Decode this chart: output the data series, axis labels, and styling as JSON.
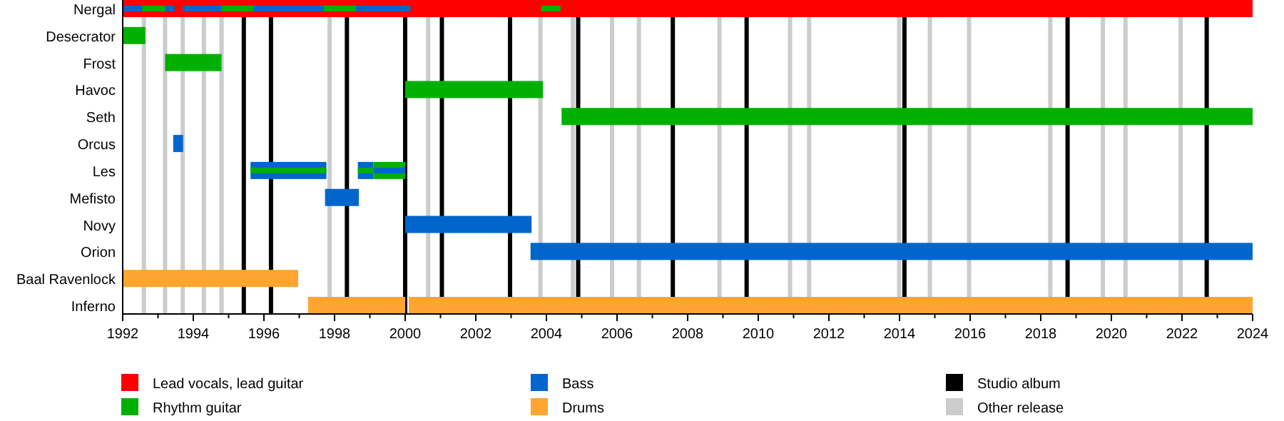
{
  "chart_data": {
    "type": "bar",
    "orientation": "horizontal",
    "legend": "bottom",
    "categories": [
      "Nergal",
      "Desecrator",
      "Frost",
      "Havoc",
      "Seth",
      "Orcus",
      "Les",
      "Mefisto",
      "Novy",
      "Orion",
      "Baal Ravenlock",
      "Inferno"
    ],
    "xlim": [
      1992,
      2024
    ],
    "xticks": [
      1992,
      {
        "value": 1993,
        "label": null
      },
      1994,
      {
        "value": 1995,
        "label": null
      },
      1996,
      {
        "value": 1997,
        "label": null
      },
      1998,
      {
        "value": 1999,
        "label": null
      },
      2000,
      {
        "value": 2001,
        "label": null
      },
      2002,
      {
        "value": 2003,
        "label": null
      },
      2004,
      {
        "value": 2005,
        "label": null
      },
      2006,
      {
        "value": 2007,
        "label": null
      },
      2008,
      {
        "value": 2009,
        "label": null
      },
      2010,
      {
        "value": 2011,
        "label": null
      },
      2012,
      {
        "value": 2013,
        "label": null
      },
      2014,
      {
        "value": 2015,
        "label": null
      },
      2016,
      {
        "value": 2017,
        "label": null
      },
      2018,
      {
        "value": 2019,
        "label": null
      },
      2020,
      {
        "value": 2021,
        "label": null
      },
      2022,
      {
        "value": 2023,
        "label": null
      },
      2024
    ],
    "series": [
      {
        "name": "Lead vocals, lead guitar",
        "color": "#ff0000",
        "base": [
          1992,
          null,
          null,
          null,
          null,
          null,
          null,
          null,
          null,
          null,
          null,
          null
        ],
        "values": [
          32,
          null,
          null,
          null,
          null,
          null,
          null,
          null,
          null,
          null,
          null,
          null
        ]
      },
      {
        "name": "Rhythm guitar",
        "color": "#00b000",
        "base": [
          null,
          1992,
          1993.2,
          2000,
          2004.43,
          null,
          1999.1,
          null,
          null,
          null,
          null,
          null
        ],
        "values": [
          null,
          0.64,
          1.6,
          3.9,
          19.57,
          null,
          0.9,
          null,
          null,
          null,
          null,
          null
        ]
      },
      {
        "name": "Bass",
        "color": "#0066cc",
        "base": [
          null,
          null,
          null,
          null,
          null,
          1993.43,
          1995.62,
          1997.73,
          2000,
          2003.55,
          null,
          null
        ],
        "values": [
          null,
          null,
          null,
          null,
          null,
          0.28,
          2.15,
          0.96,
          3.58,
          20.45,
          null,
          null
        ]
      },
      {
        "name": "Drums",
        "color": "#ffa530",
        "base": [
          null,
          null,
          null,
          null,
          null,
          null,
          null,
          null,
          null,
          null,
          1992,
          1997.25
        ],
        "values": [
          null,
          null,
          null,
          null,
          null,
          null,
          null,
          null,
          null,
          null,
          4.97,
          2.75
        ]
      },
      {
        "color": "#ffa530",
        "base": [
          null,
          null,
          null,
          null,
          null,
          null,
          null,
          null,
          null,
          null,
          null,
          2000.1
        ],
        "values": [
          null,
          null,
          null,
          null,
          null,
          null,
          null,
          null,
          null,
          null,
          null,
          23.9
        ]
      },
      {
        "color": "#0066cc",
        "base": [
          1992,
          null,
          null,
          null,
          null,
          null,
          1998.66,
          null,
          null,
          null,
          null,
          null
        ],
        "values": [
          1.47,
          null,
          null,
          null,
          null,
          null,
          0.44,
          null,
          null,
          null,
          null,
          null
        ]
      },
      {
        "color": "#0066cc",
        "base": [
          1993.7,
          null,
          null,
          null,
          null,
          null,
          1999.1,
          null,
          null,
          null,
          null,
          null
        ],
        "values": [
          6.45,
          null,
          null,
          null,
          null,
          null,
          0.9,
          null,
          null,
          null,
          null,
          null
        ]
      },
      {
        "color": "#00b000",
        "base": [
          1992.55,
          null,
          null,
          null,
          null,
          null,
          1995.62,
          null,
          null,
          null,
          null,
          null
        ],
        "values": [
          0.65,
          null,
          null,
          null,
          null,
          null,
          2.15,
          null,
          null,
          null,
          null,
          null
        ]
      },
      {
        "color": "#00b000",
        "base": [
          1994.8,
          null,
          null,
          null,
          null,
          null,
          1998.66,
          null,
          null,
          null,
          null,
          null
        ],
        "values": [
          0.9,
          null,
          null,
          null,
          null,
          null,
          0.44,
          null,
          null,
          null,
          null,
          null
        ]
      },
      {
        "color": "#00b000",
        "base": [
          1997.7,
          null,
          null,
          null,
          null,
          null,
          null,
          null,
          null,
          null,
          null,
          null
        ],
        "values": [
          0.9,
          null,
          null,
          null,
          null,
          null,
          null,
          null,
          null,
          null,
          null,
          null
        ]
      },
      {
        "color": "#00b000",
        "base": [
          2003.85,
          null,
          null,
          null,
          null,
          null,
          null,
          null,
          null,
          null,
          null,
          null
        ],
        "values": [
          0.55,
          null,
          null,
          null,
          null,
          null,
          null,
          null,
          null,
          null,
          null,
          null
        ]
      }
    ],
    "ref_lines": [
      {
        "axis": "x",
        "value": 1995.43,
        "color": "#000000",
        "label": "Studio album"
      },
      {
        "axis": "x",
        "value": 1996.2,
        "color": "#000000"
      },
      {
        "axis": "x",
        "value": 1998.35,
        "color": "#000000"
      },
      {
        "axis": "x",
        "value": 2000,
        "color": "#000000"
      },
      {
        "axis": "x",
        "value": 2001.04,
        "color": "#000000"
      },
      {
        "axis": "x",
        "value": 2002.97,
        "color": "#000000"
      },
      {
        "axis": "x",
        "value": 2004.9,
        "color": "#000000"
      },
      {
        "axis": "x",
        "value": 2007.58,
        "color": "#000000"
      },
      {
        "axis": "x",
        "value": 2009.67,
        "color": "#000000"
      },
      {
        "axis": "x",
        "value": 2014.14,
        "color": "#000000"
      },
      {
        "axis": "x",
        "value": 2018.76,
        "color": "#000000"
      },
      {
        "axis": "x",
        "value": 2022.7,
        "color": "#000000"
      },
      {
        "axis": "x",
        "value": 1992.6,
        "color": "#cccccc",
        "label": "Other release"
      },
      {
        "axis": "x",
        "value": 1993.2,
        "color": "#cccccc"
      },
      {
        "axis": "x",
        "value": 1993.7,
        "color": "#cccccc"
      },
      {
        "axis": "x",
        "value": 1994.3,
        "color": "#cccccc"
      },
      {
        "axis": "x",
        "value": 1994.8,
        "color": "#cccccc"
      },
      {
        "axis": "x",
        "value": 1997.86,
        "color": "#cccccc"
      },
      {
        "axis": "x",
        "value": 2000.65,
        "color": "#cccccc"
      },
      {
        "axis": "x",
        "value": 2003.83,
        "color": "#cccccc"
      },
      {
        "axis": "x",
        "value": 2004.75,
        "color": "#cccccc"
      },
      {
        "axis": "x",
        "value": 2005.86,
        "color": "#cccccc"
      },
      {
        "axis": "x",
        "value": 2006.62,
        "color": "#cccccc"
      },
      {
        "axis": "x",
        "value": 2008.9,
        "color": "#cccccc"
      },
      {
        "axis": "x",
        "value": 2010.9,
        "color": "#cccccc"
      },
      {
        "axis": "x",
        "value": 2011.44,
        "color": "#cccccc"
      },
      {
        "axis": "x",
        "value": 2013.99,
        "color": "#cccccc"
      },
      {
        "axis": "x",
        "value": 2014.86,
        "color": "#cccccc"
      },
      {
        "axis": "x",
        "value": 2015.97,
        "color": "#cccccc"
      },
      {
        "axis": "x",
        "value": 2018.27,
        "color": "#cccccc"
      },
      {
        "axis": "x",
        "value": 2019.76,
        "color": "#cccccc"
      },
      {
        "axis": "x",
        "value": 2020.4,
        "color": "#cccccc"
      },
      {
        "axis": "x",
        "value": 2021.96,
        "color": "#cccccc"
      }
    ]
  }
}
